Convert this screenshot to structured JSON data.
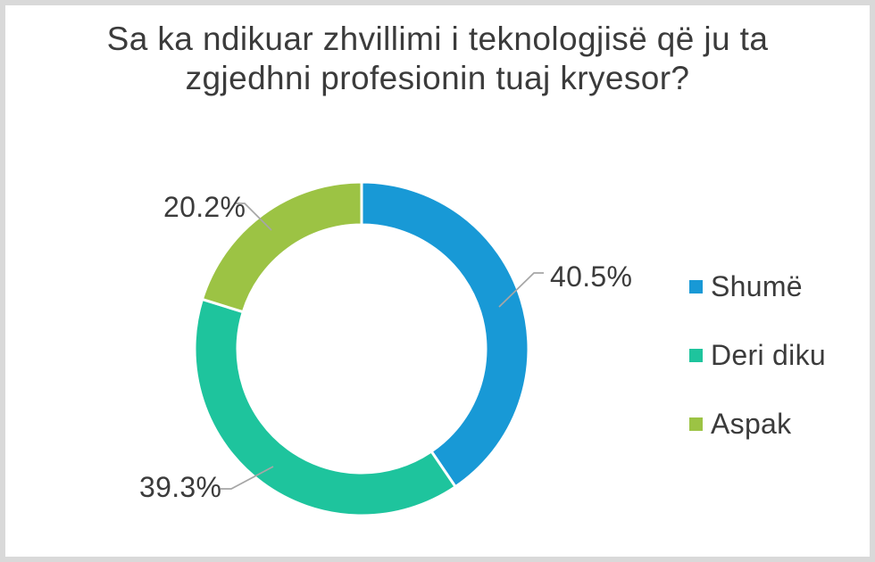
{
  "theme": {
    "text_color": "#3b3b3b",
    "leader_line_color": "#a6a6a6",
    "slide_border_color": "#d9d9d9",
    "background_color": "#ffffff"
  },
  "chart_data": {
    "type": "pie",
    "subtype": "donut",
    "title": "Sa ka ndikuar zhvillimi i teknologjisë që ju ta zgjedhni profesionin tuaj kryesor?",
    "unit": "%",
    "legend_position": "right",
    "slices": [
      {
        "legend_label": "Shumë",
        "value": 40.5,
        "pct_label": "40.5%",
        "color": "#1899d6"
      },
      {
        "legend_label": "Deri diku",
        "value": 39.3,
        "pct_label": "39.3%",
        "color": "#1ec49d"
      },
      {
        "legend_label": "Aspak",
        "value": 20.2,
        "pct_label": "20.2%",
        "color": "#9cc344"
      }
    ]
  }
}
